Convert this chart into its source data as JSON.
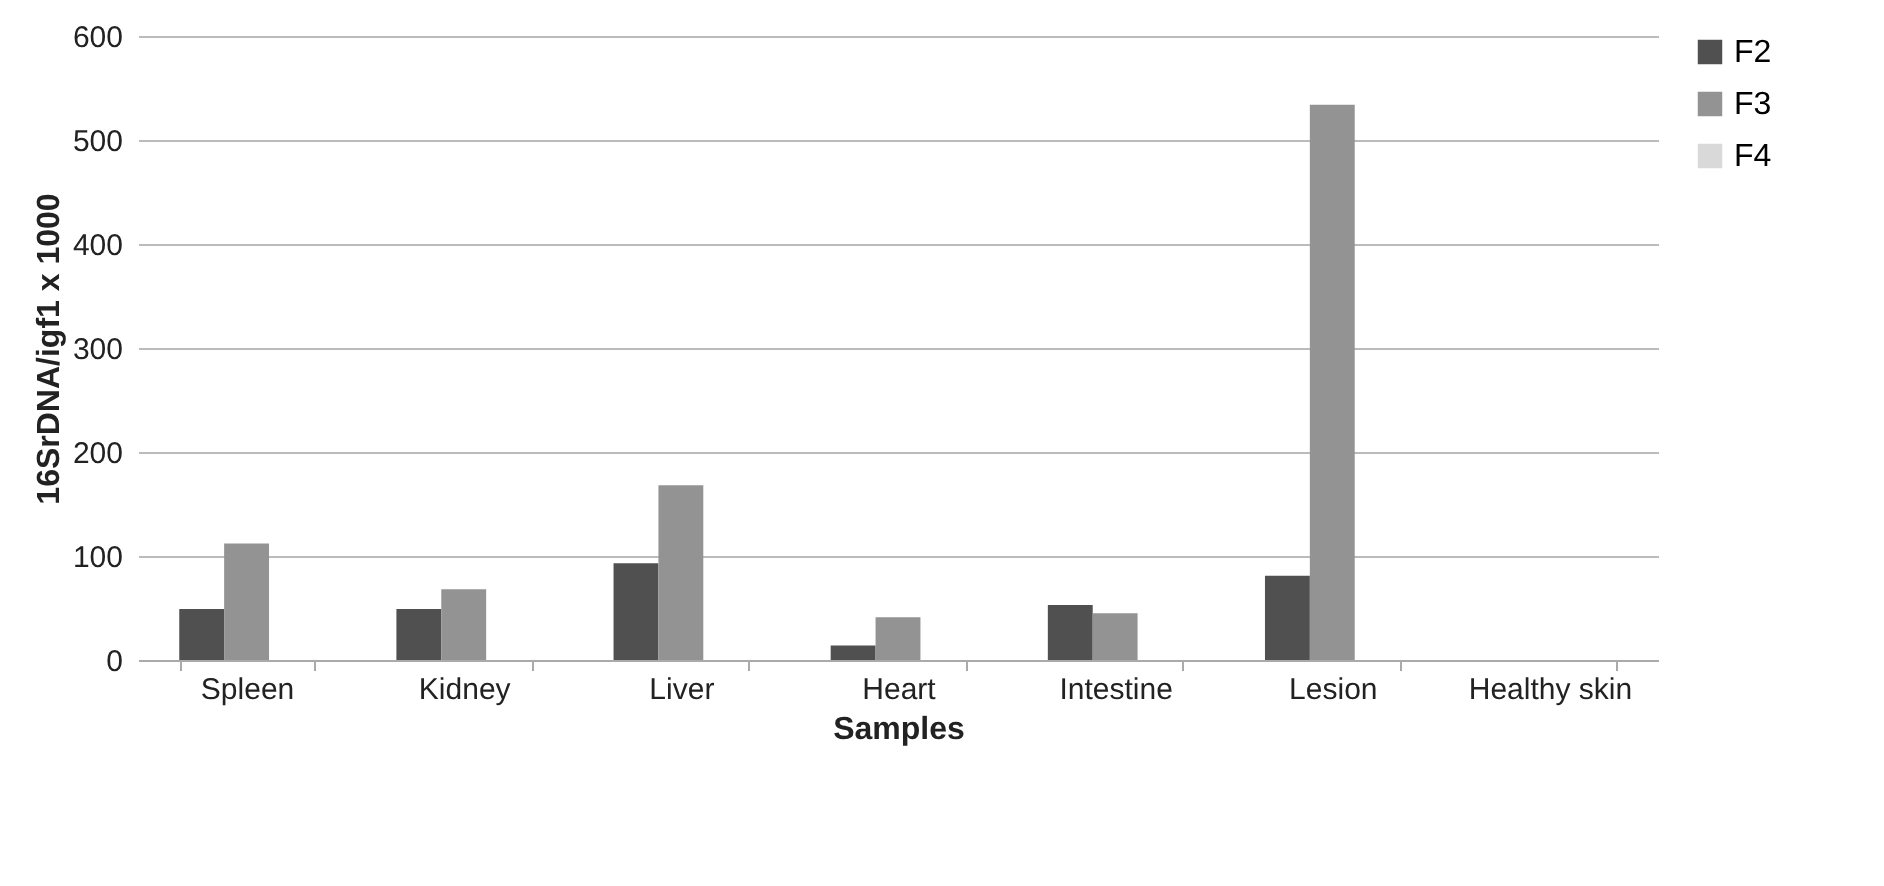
{
  "chart_data": {
    "type": "bar",
    "xlabel": "Samples",
    "ylabel": "16SrDNA/igf1 x 1000",
    "categories": [
      "Spleen",
      "Kidney",
      "Liver",
      "Heart",
      "Intestine",
      "Lesion",
      "Healthy skin"
    ],
    "series": [
      {
        "name": "F2",
        "color": "#505050",
        "values": [
          49,
          49,
          93,
          14,
          53,
          81,
          0
        ]
      },
      {
        "name": "F3",
        "color": "#939393",
        "values": [
          112,
          68,
          168,
          41,
          45,
          534,
          0
        ]
      },
      {
        "name": "F4",
        "color": "#d9d9d9",
        "values": [
          0,
          0,
          0,
          0,
          0,
          0,
          0
        ]
      }
    ],
    "ylim": [
      0,
      600
    ],
    "yticks": [
      0,
      100,
      200,
      300,
      400,
      500,
      600
    ],
    "grid": "y",
    "legend": "right"
  }
}
